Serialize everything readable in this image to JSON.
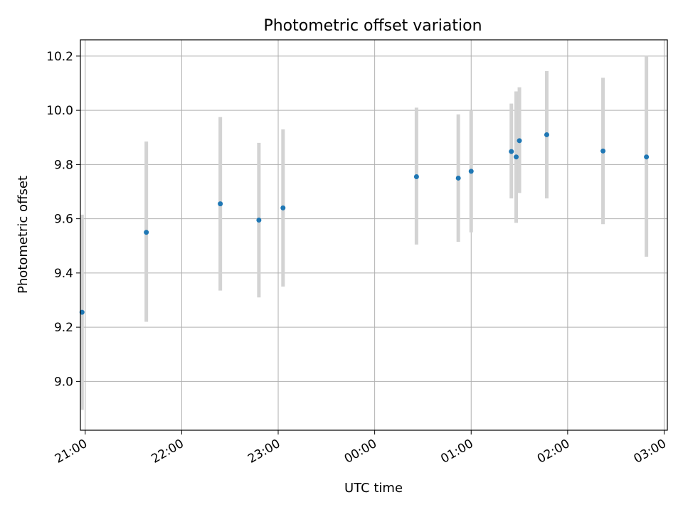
{
  "chart_data": {
    "type": "scatter",
    "title": "Photometric offset variation",
    "xlabel": "UTC time",
    "ylabel": "Photometric offset",
    "x_unit": "minutes since 21:00 UTC",
    "xlim": [
      -3,
      362
    ],
    "ylim": [
      8.82,
      10.26
    ],
    "grid": true,
    "x_ticks": [
      {
        "label": "21:00",
        "value": 0
      },
      {
        "label": "22:00",
        "value": 60
      },
      {
        "label": "23:00",
        "value": 120
      },
      {
        "label": "00:00",
        "value": 180
      },
      {
        "label": "01:00",
        "value": 240
      },
      {
        "label": "02:00",
        "value": 300
      },
      {
        "label": "03:00",
        "value": 360
      }
    ],
    "y_ticks": [
      {
        "label": "9.0",
        "value": 9.0
      },
      {
        "label": "9.2",
        "value": 9.2
      },
      {
        "label": "9.4",
        "value": 9.4
      },
      {
        "label": "9.6",
        "value": 9.6
      },
      {
        "label": "9.8",
        "value": 9.8
      },
      {
        "label": "10.0",
        "value": 10.0
      },
      {
        "label": "10.2",
        "value": 10.2
      }
    ],
    "series": [
      {
        "name": "photometric offset",
        "color": "#1f77b4",
        "errorbar_color": "#d3d3d3",
        "points": [
          {
            "x": -2,
            "y": 9.255,
            "ylo": 8.895,
            "yhi": 9.615
          },
          {
            "x": 38,
            "y": 9.55,
            "ylo": 9.22,
            "yhi": 9.885
          },
          {
            "x": 84,
            "y": 9.655,
            "ylo": 9.335,
            "yhi": 9.975
          },
          {
            "x": 108,
            "y": 9.595,
            "ylo": 9.31,
            "yhi": 9.88
          },
          {
            "x": 123,
            "y": 9.64,
            "ylo": 9.35,
            "yhi": 9.93
          },
          {
            "x": 206,
            "y": 9.755,
            "ylo": 9.505,
            "yhi": 10.01
          },
          {
            "x": 232,
            "y": 9.75,
            "ylo": 9.515,
            "yhi": 9.985
          },
          {
            "x": 240,
            "y": 9.775,
            "ylo": 9.55,
            "yhi": 10.0
          },
          {
            "x": 265,
            "y": 9.848,
            "ylo": 9.675,
            "yhi": 10.025
          },
          {
            "x": 268,
            "y": 9.828,
            "ylo": 9.585,
            "yhi": 10.07
          },
          {
            "x": 270,
            "y": 9.888,
            "ylo": 9.695,
            "yhi": 10.085
          },
          {
            "x": 287,
            "y": 9.91,
            "ylo": 9.675,
            "yhi": 10.145
          },
          {
            "x": 322,
            "y": 9.85,
            "ylo": 9.58,
            "yhi": 10.12
          },
          {
            "x": 349,
            "y": 9.828,
            "ylo": 9.46,
            "yhi": 10.2
          }
        ]
      }
    ]
  }
}
